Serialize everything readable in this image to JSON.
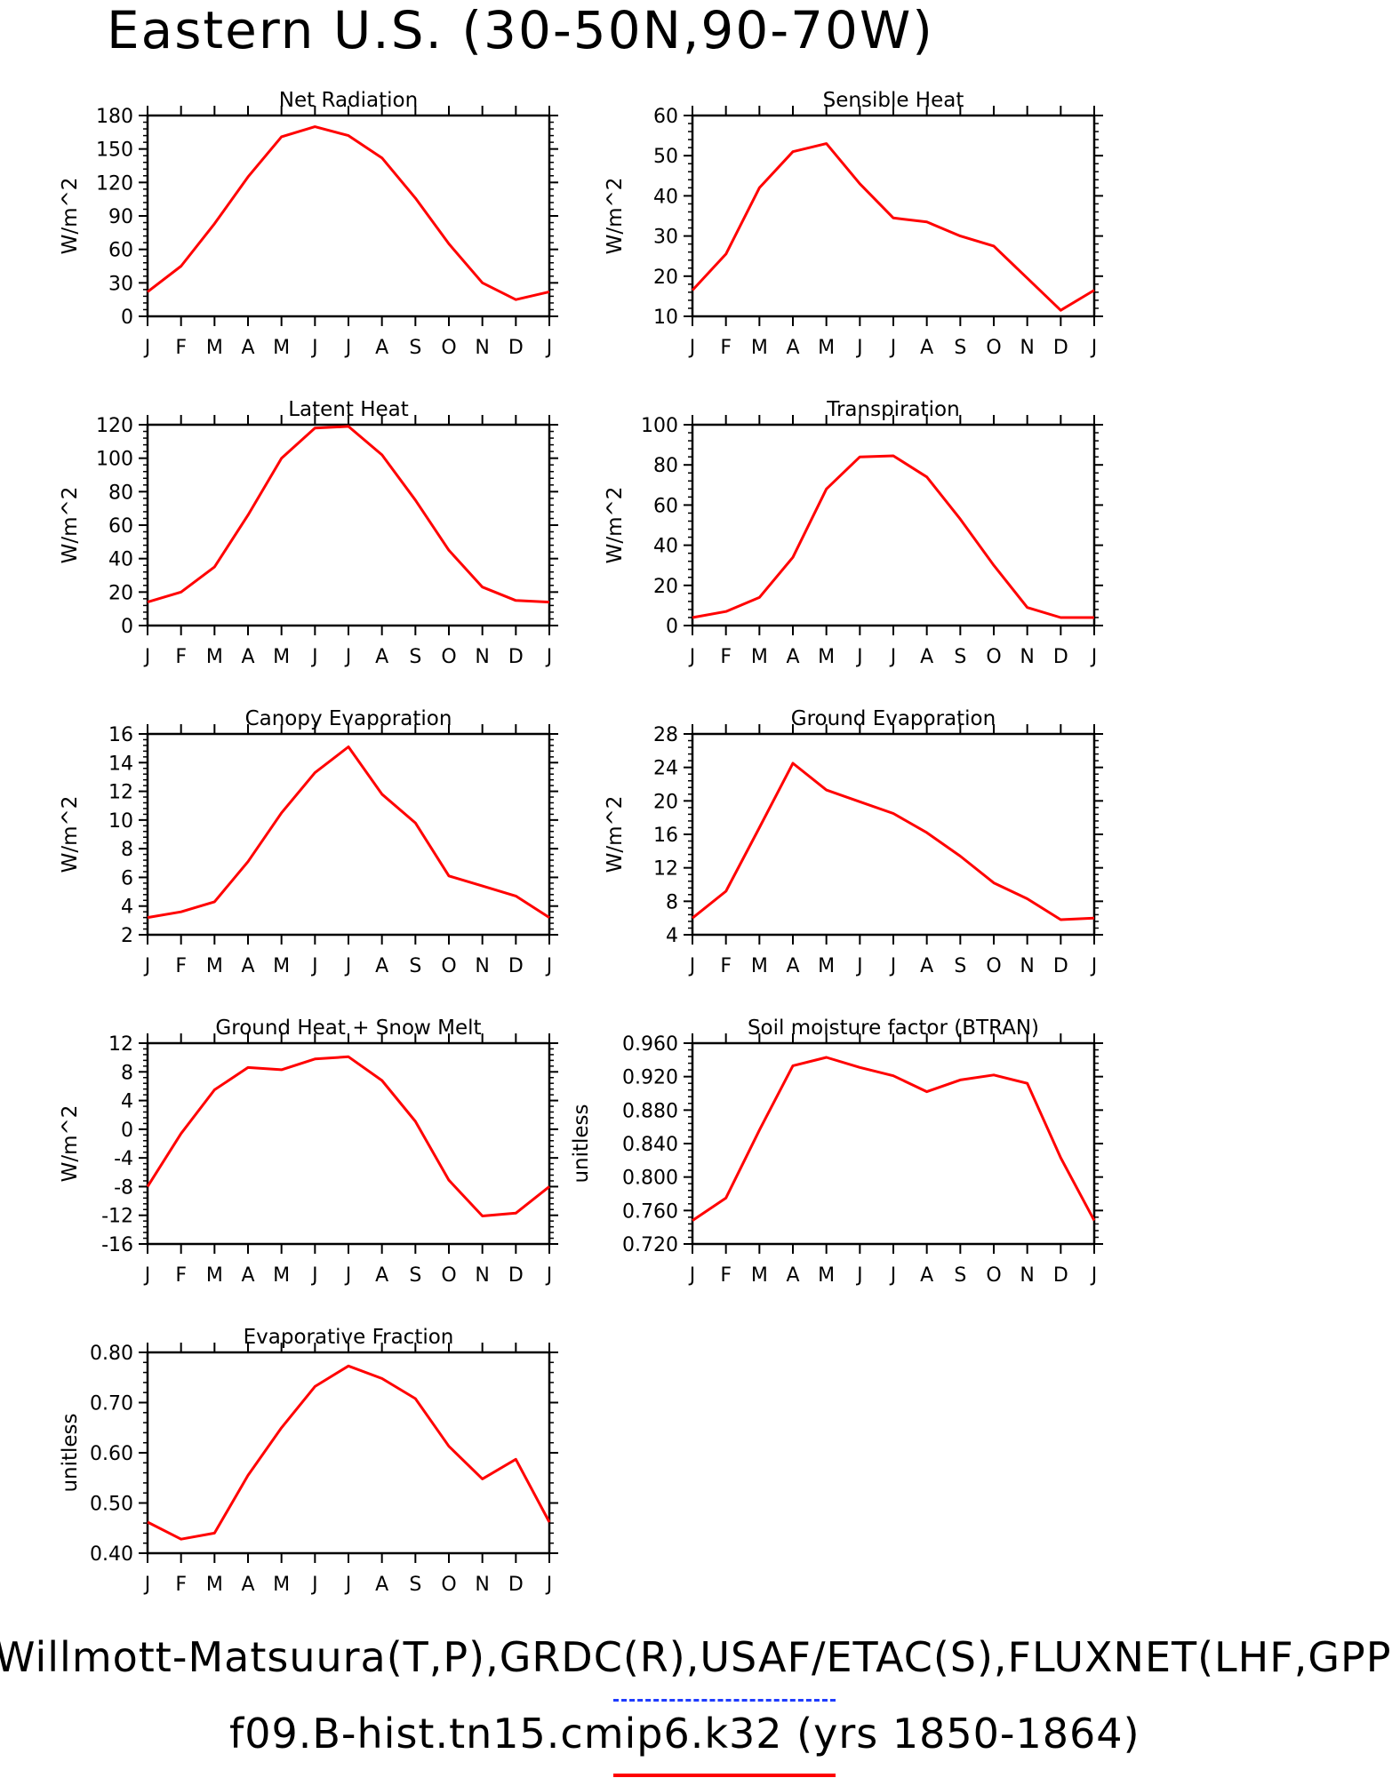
{
  "title": "Eastern U.S. (30-50N,90-70W)",
  "legend": {
    "line1": "Willmott-Matsuura(T,P),GRDC(R),USAF/ETAC(S),FLUXNET(LHF,GPP)",
    "line2": "f09.B-hist.tn15.cmip6.k32 (yrs 1850-1864)",
    "series1_color": "#1e3cff",
    "series2_color": "#ff0000"
  },
  "chart_data": [
    {
      "type": "line",
      "title": "Net Radiation",
      "ylabel": "W/m^2",
      "categories": [
        "J",
        "F",
        "M",
        "A",
        "M",
        "J",
        "J",
        "A",
        "S",
        "O",
        "N",
        "D",
        "J"
      ],
      "ylim": [
        0,
        180
      ],
      "yticks": [
        "0",
        "30",
        "60",
        "90",
        "120",
        "150",
        "180"
      ],
      "series": [
        {
          "color": "#ff0000",
          "values": [
            22,
            45,
            83,
            125,
            161,
            170,
            162,
            142,
            106,
            65,
            30,
            15,
            22
          ]
        }
      ]
    },
    {
      "type": "line",
      "title": "Sensible Heat",
      "ylabel": "W/m^2",
      "categories": [
        "J",
        "F",
        "M",
        "A",
        "M",
        "J",
        "J",
        "A",
        "S",
        "O",
        "N",
        "D",
        "J"
      ],
      "ylim": [
        10,
        60
      ],
      "yticks": [
        "10",
        "20",
        "30",
        "40",
        "50",
        "60"
      ],
      "series": [
        {
          "color": "#ff0000",
          "values": [
            16.5,
            25.5,
            42,
            51,
            53,
            43,
            34.5,
            33.5,
            30,
            27.5,
            19.5,
            11.5,
            16.5
          ]
        }
      ]
    },
    {
      "type": "line",
      "title": "Latent Heat",
      "ylabel": "W/m^2",
      "categories": [
        "J",
        "F",
        "M",
        "A",
        "M",
        "J",
        "J",
        "A",
        "S",
        "O",
        "N",
        "D",
        "J"
      ],
      "ylim": [
        0,
        120
      ],
      "yticks": [
        "0",
        "20",
        "40",
        "60",
        "80",
        "100",
        "120"
      ],
      "series": [
        {
          "color": "#ff0000",
          "values": [
            14,
            20,
            35,
            66,
            100,
            118,
            119,
            102,
            75,
            45,
            23,
            15,
            14
          ]
        }
      ]
    },
    {
      "type": "line",
      "title": "Transpiration",
      "ylabel": "W/m^2",
      "categories": [
        "J",
        "F",
        "M",
        "A",
        "M",
        "J",
        "J",
        "A",
        "S",
        "O",
        "N",
        "D",
        "J"
      ],
      "ylim": [
        0,
        100
      ],
      "yticks": [
        "0",
        "20",
        "40",
        "60",
        "80",
        "100"
      ],
      "series": [
        {
          "color": "#ff0000",
          "values": [
            4,
            7,
            14,
            34,
            68,
            84,
            84.5,
            74,
            53,
            30,
            9,
            4,
            4
          ]
        }
      ]
    },
    {
      "type": "line",
      "title": "Canopy Evaporation",
      "ylabel": "W/m^2",
      "categories": [
        "J",
        "F",
        "M",
        "A",
        "M",
        "J",
        "J",
        "A",
        "S",
        "O",
        "N",
        "D",
        "J"
      ],
      "ylim": [
        2,
        16
      ],
      "yticks": [
        "2",
        "4",
        "6",
        "8",
        "10",
        "12",
        "14",
        "16"
      ],
      "series": [
        {
          "color": "#ff0000",
          "values": [
            3.2,
            3.6,
            4.3,
            7.1,
            10.5,
            13.3,
            15.1,
            11.8,
            9.8,
            6.1,
            5.4,
            4.7,
            3.2
          ]
        }
      ]
    },
    {
      "type": "line",
      "title": "Ground Evaporation",
      "ylabel": "W/m^2",
      "categories": [
        "J",
        "F",
        "M",
        "A",
        "M",
        "J",
        "J",
        "A",
        "S",
        "O",
        "N",
        "D",
        "J"
      ],
      "ylim": [
        4,
        28
      ],
      "yticks": [
        "4",
        "8",
        "12",
        "16",
        "20",
        "24",
        "28"
      ],
      "series": [
        {
          "color": "#ff0000",
          "values": [
            6,
            9.2,
            16.8,
            24.5,
            21.3,
            19.9,
            18.5,
            16.2,
            13.4,
            10.2,
            8.3,
            5.8,
            6
          ]
        }
      ]
    },
    {
      "type": "line",
      "title": "Ground Heat + Snow Melt",
      "ylabel": "W/m^2",
      "categories": [
        "J",
        "F",
        "M",
        "A",
        "M",
        "J",
        "J",
        "A",
        "S",
        "O",
        "N",
        "D",
        "J"
      ],
      "ylim": [
        -16,
        12
      ],
      "yticks": [
        "-16",
        "-12",
        "-8",
        "-4",
        "0",
        "4",
        "8",
        "12"
      ],
      "series": [
        {
          "color": "#ff0000",
          "values": [
            -8,
            -0.6,
            5.5,
            8.6,
            8.3,
            9.8,
            10.1,
            6.8,
            1.1,
            -7.1,
            -12.1,
            -11.7,
            -8
          ]
        }
      ]
    },
    {
      "type": "line",
      "title": "Soil moisture factor (BTRAN)",
      "ylabel": "unitless",
      "categories": [
        "J",
        "F",
        "M",
        "A",
        "M",
        "J",
        "J",
        "A",
        "S",
        "O",
        "N",
        "D",
        "J"
      ],
      "ylim": [
        0.72,
        0.96
      ],
      "yticks": [
        "0.720",
        "0.760",
        "0.800",
        "0.840",
        "0.880",
        "0.920",
        "0.960"
      ],
      "series": [
        {
          "color": "#ff0000",
          "values": [
            0.748,
            0.775,
            0.856,
            0.933,
            0.943,
            0.931,
            0.921,
            0.902,
            0.916,
            0.922,
            0.912,
            0.823,
            0.748
          ]
        }
      ]
    },
    {
      "type": "line",
      "title": "Evaporative Fraction",
      "ylabel": "unitless",
      "categories": [
        "J",
        "F",
        "M",
        "A",
        "M",
        "J",
        "J",
        "A",
        "S",
        "O",
        "N",
        "D",
        "J"
      ],
      "ylim": [
        0.4,
        0.8
      ],
      "yticks": [
        "0.40",
        "0.50",
        "0.60",
        "0.70",
        "0.80"
      ],
      "series": [
        {
          "color": "#ff0000",
          "values": [
            0.462,
            0.428,
            0.44,
            0.555,
            0.65,
            0.732,
            0.773,
            0.748,
            0.708,
            0.613,
            0.548,
            0.587,
            0.462
          ]
        }
      ]
    }
  ]
}
